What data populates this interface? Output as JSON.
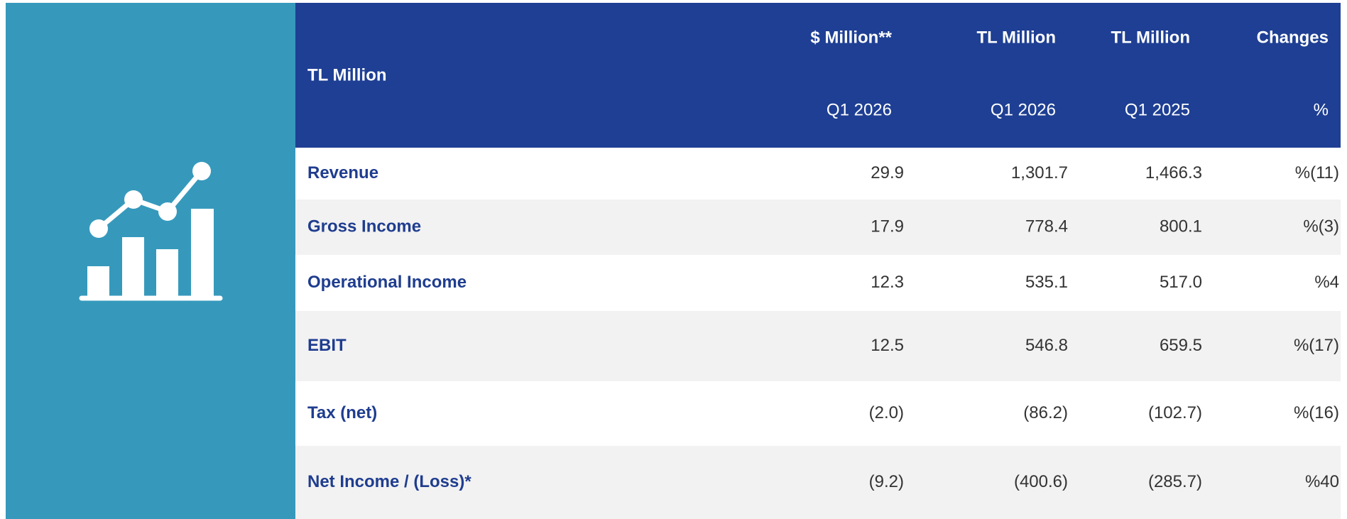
{
  "header": {
    "corner": "TL Million",
    "columns": [
      {
        "unit": "$ Million**",
        "period": "Q1 2026"
      },
      {
        "unit": "TL Million",
        "period": "Q1 2026"
      },
      {
        "unit": "TL Million",
        "period": "Q1 2025"
      },
      {
        "unit": "Changes",
        "period": "%"
      }
    ]
  },
  "rows": [
    {
      "label": "Revenue",
      "values": [
        "29.9",
        "1,301.7",
        "1,466.3",
        "%(11)"
      ]
    },
    {
      "label": "Gross Income",
      "values": [
        "17.9",
        "778.4",
        "800.1",
        "%(3)"
      ]
    },
    {
      "label": "Operational Income",
      "values": [
        "12.3",
        "535.1",
        "517.0",
        "%4"
      ]
    },
    {
      "label": "EBIT",
      "values": [
        "12.5",
        "546.8",
        "659.5",
        "%(17)"
      ]
    },
    {
      "label": "Tax (net)",
      "values": [
        "(2.0)",
        "(86.2)",
        "(102.7)",
        "%(16)"
      ]
    },
    {
      "label": "Net Income / (Loss)*",
      "values": [
        "(9.2)",
        "(400.6)",
        "(285.7)",
        "%40"
      ]
    }
  ]
}
